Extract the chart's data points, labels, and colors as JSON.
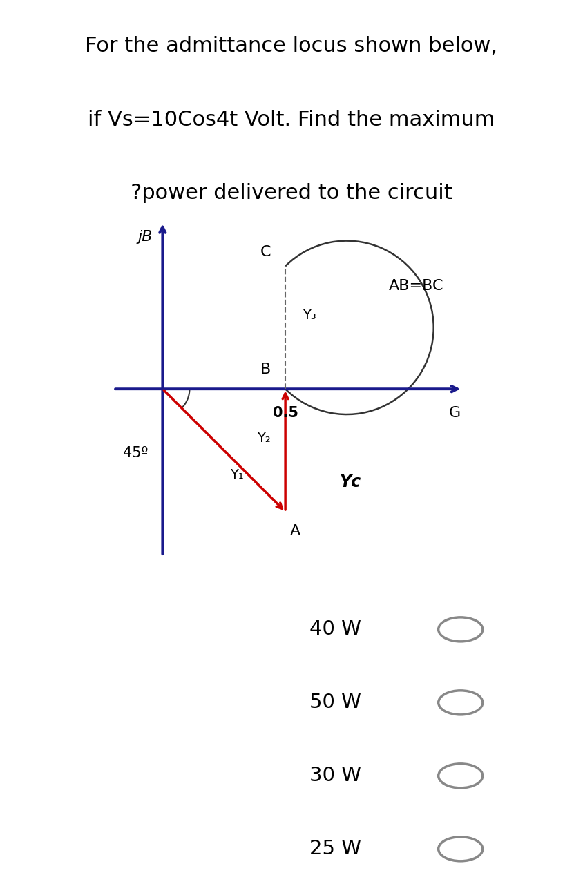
{
  "title_lines": [
    "For the admittance locus shown below,",
    "if Vs=10Cos4t Volt. Find the maximum",
    "?power delivered to the circuit"
  ],
  "title_fontsize": 22,
  "background_color": "#ffffff",
  "diagram": {
    "axis_color": "#1a1a8c",
    "arrow_color": "#cc0000",
    "arc_color": "#333333",
    "dashed_color": "#666666",
    "label_0p5": "0.5",
    "label_G": "G",
    "label_jB": "jB",
    "label_B": "B",
    "label_A": "A",
    "label_C": "C",
    "label_Y1": "Y₁",
    "label_Y2": "Y₂",
    "label_Y3": "Y₃",
    "label_Yc": "Yc",
    "label_AB_BC": "AB=BC",
    "label_45": "45º"
  },
  "choices": [
    "40 W",
    "50 W",
    "30 W",
    "25 W"
  ],
  "choice_fontsize": 21
}
